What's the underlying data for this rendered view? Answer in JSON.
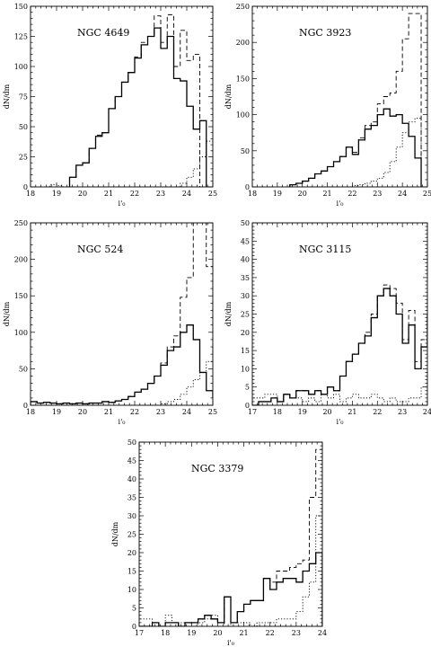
{
  "chart_data": [
    {
      "type": "histogram",
      "label": "NGC 4649",
      "xlabel": "i'₀",
      "ylabel": "dN/dm",
      "xlim": [
        18,
        25
      ],
      "ylim": [
        0,
        150
      ],
      "xticks": [
        18,
        19,
        20,
        21,
        22,
        23,
        24,
        25
      ],
      "yticks": [
        0,
        25,
        50,
        75,
        100,
        125,
        150
      ],
      "bin_width": 0.25,
      "series": [
        {
          "style": "dashed",
          "x_start": 19.5,
          "values": [
            8,
            18,
            20,
            32,
            43,
            45,
            65,
            75,
            87,
            95,
            108,
            120,
            125,
            142,
            120,
            143,
            100,
            130,
            105,
            110
          ]
        },
        {
          "style": "solid",
          "x_start": 19.5,
          "values": [
            8,
            18,
            20,
            32,
            42,
            45,
            65,
            75,
            87,
            95,
            107,
            118,
            125,
            132,
            115,
            125,
            90,
            88,
            67,
            48,
            55
          ]
        },
        {
          "style": "dotted",
          "x_start": 18.75,
          "values": [
            2,
            1,
            0,
            0,
            0,
            0,
            0,
            0,
            0,
            0,
            0,
            0,
            0,
            0,
            0,
            0,
            0,
            0,
            0,
            0,
            3,
            8,
            15,
            25,
            38,
            45,
            50
          ]
        }
      ]
    },
    {
      "type": "histogram",
      "label": "NGC 3923",
      "xlabel": "i'₀",
      "ylabel": "dN/dm",
      "xlim": [
        18,
        25
      ],
      "ylim": [
        0,
        250
      ],
      "xticks": [
        18,
        19,
        20,
        21,
        22,
        23,
        24,
        25
      ],
      "yticks": [
        0,
        50,
        100,
        150,
        200,
        250
      ],
      "bin_width": 0.25,
      "series": [
        {
          "style": "dashed",
          "x_start": 19.5,
          "values": [
            3,
            5,
            8,
            12,
            18,
            22,
            28,
            35,
            42,
            55,
            48,
            68,
            85,
            90,
            115,
            125,
            130,
            160,
            205,
            240,
            240
          ]
        },
        {
          "style": "solid",
          "x_start": 19.5,
          "values": [
            3,
            5,
            8,
            12,
            18,
            22,
            28,
            35,
            42,
            55,
            45,
            65,
            80,
            85,
            100,
            108,
            98,
            100,
            88,
            70,
            40
          ]
        },
        {
          "style": "dotted",
          "x_start": 19.5,
          "values": [
            0,
            0,
            0,
            0,
            0,
            0,
            0,
            0,
            0,
            0,
            2,
            3,
            5,
            8,
            12,
            20,
            35,
            55,
            75,
            90,
            95
          ]
        }
      ]
    },
    {
      "type": "histogram",
      "label": "NGC 524",
      "xlabel": "i'₀",
      "ylabel": "dN/dm",
      "xlim": [
        18,
        25
      ],
      "ylim": [
        0,
        250
      ],
      "xticks": [
        18,
        19,
        20,
        21,
        22,
        23,
        24,
        25
      ],
      "yticks": [
        0,
        50,
        100,
        150,
        200,
        250
      ],
      "bin_width": 0.25,
      "series": [
        {
          "style": "dashed",
          "x_start": 18,
          "values": [
            5,
            3,
            4,
            3,
            2,
            3,
            2,
            3,
            2,
            3,
            3,
            5,
            4,
            6,
            8,
            12,
            18,
            22,
            30,
            40,
            58,
            80,
            95,
            148,
            175,
            250,
            250,
            190,
            60
          ]
        },
        {
          "style": "solid",
          "x_start": 18,
          "values": [
            5,
            3,
            4,
            3,
            2,
            3,
            2,
            3,
            2,
            3,
            3,
            5,
            4,
            6,
            8,
            12,
            18,
            22,
            30,
            40,
            55,
            75,
            80,
            100,
            110,
            90,
            45,
            20,
            10
          ]
        },
        {
          "style": "dotted",
          "x_start": 18,
          "values": [
            0,
            0,
            0,
            0,
            0,
            0,
            0,
            0,
            0,
            0,
            0,
            0,
            0,
            0,
            0,
            0,
            0,
            0,
            0,
            0,
            2,
            5,
            8,
            15,
            25,
            35,
            45,
            60,
            80
          ]
        }
      ]
    },
    {
      "type": "histogram",
      "label": "NGC 3115",
      "xlabel": "i'₀",
      "ylabel": "dN/dm",
      "xlim": [
        17,
        24
      ],
      "ylim": [
        0,
        50
      ],
      "xticks": [
        17,
        18,
        19,
        20,
        21,
        22,
        23,
        24
      ],
      "yticks": [
        0,
        5,
        10,
        15,
        20,
        25,
        30,
        35,
        40,
        45,
        50
      ],
      "bin_width": 0.25,
      "series": [
        {
          "style": "dashed",
          "x_start": 17,
          "values": [
            0,
            1,
            1,
            2,
            1,
            3,
            2,
            4,
            4,
            3,
            4,
            3,
            5,
            4,
            8,
            12,
            14,
            17,
            20,
            25,
            30,
            33,
            32,
            28,
            18,
            26,
            12,
            18,
            30,
            47
          ]
        },
        {
          "style": "solid",
          "x_start": 17,
          "values": [
            0,
            1,
            1,
            2,
            1,
            3,
            2,
            4,
            4,
            3,
            4,
            3,
            5,
            4,
            8,
            12,
            14,
            17,
            19,
            24,
            30,
            32,
            30,
            25,
            17,
            22,
            10,
            16,
            25,
            33
          ]
        },
        {
          "style": "dotted",
          "x_start": 17,
          "values": [
            2,
            2,
            3,
            3,
            1,
            3,
            2,
            2,
            1,
            2,
            1,
            3,
            2,
            3,
            1,
            2,
            3,
            2,
            2,
            3,
            2,
            1,
            2,
            1,
            1,
            2,
            2,
            5,
            8,
            17
          ]
        }
      ]
    },
    {
      "type": "histogram",
      "label": "NGC 3379",
      "xlabel": "i'₀",
      "ylabel": "dN/dm",
      "xlim": [
        17,
        24
      ],
      "ylim": [
        0,
        50
      ],
      "xticks": [
        17,
        18,
        19,
        20,
        21,
        22,
        23,
        24
      ],
      "yticks": [
        0,
        5,
        10,
        15,
        20,
        25,
        30,
        35,
        40,
        45,
        50
      ],
      "bin_width": 0.25,
      "series": [
        {
          "style": "dashed",
          "x_start": 17,
          "values": [
            0,
            0,
            1,
            0,
            1,
            1,
            0,
            1,
            1,
            2,
            3,
            2,
            1,
            8,
            1,
            4,
            6,
            7,
            7,
            13,
            12,
            15,
            15,
            16,
            17,
            18,
            35,
            48
          ]
        },
        {
          "style": "solid",
          "x_start": 17,
          "values": [
            0,
            0,
            1,
            0,
            1,
            1,
            0,
            1,
            1,
            2,
            3,
            2,
            1,
            8,
            1,
            4,
            6,
            7,
            7,
            13,
            10,
            12,
            13,
            13,
            12,
            15,
            17,
            20
          ]
        },
        {
          "style": "dotted",
          "x_start": 17,
          "values": [
            2,
            2,
            0,
            0,
            3,
            1,
            1,
            1,
            0,
            1,
            2,
            3,
            1,
            0,
            1,
            1,
            1,
            0,
            1,
            1,
            1,
            2,
            2,
            2,
            4,
            8,
            12,
            30
          ]
        }
      ]
    }
  ]
}
